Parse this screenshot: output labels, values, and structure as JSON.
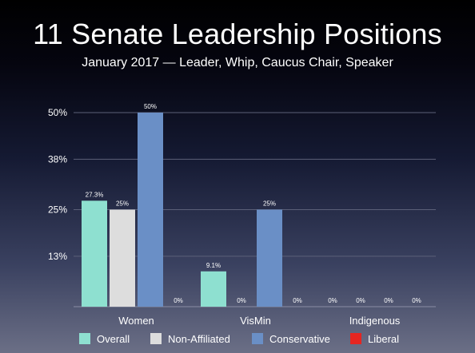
{
  "header": {
    "title": "11 Senate Leadership Positions",
    "subtitle": "January 2017 — Leader, Whip, Caucus Chair, Speaker"
  },
  "chart_data": {
    "type": "bar",
    "categories": [
      "Women",
      "VisMin",
      "Indigenous"
    ],
    "series": [
      {
        "name": "Overall",
        "color": "#8ee0d0",
        "values": [
          27.3,
          9.1,
          0
        ],
        "labels": [
          "27.3%",
          "9.1%",
          "0%"
        ]
      },
      {
        "name": "Non-Affiliated",
        "color": "#dddddd",
        "values": [
          25,
          0,
          0
        ],
        "labels": [
          "25%",
          "0%",
          "0%"
        ]
      },
      {
        "name": "Conservative",
        "color": "#6a8fc6",
        "values": [
          50,
          25,
          0
        ],
        "labels": [
          "50%",
          "25%",
          "0%"
        ]
      },
      {
        "name": "Liberal",
        "color": "#e52521",
        "values": [
          0,
          0,
          0
        ],
        "labels": [
          "0%",
          "0%",
          "0%"
        ]
      }
    ],
    "yticks": [
      13,
      25,
      38,
      50
    ],
    "ytick_labels": [
      "13%",
      "25%",
      "38%",
      "50%"
    ],
    "ylim": [
      0,
      50
    ],
    "grid": true,
    "legend": "bottom"
  }
}
